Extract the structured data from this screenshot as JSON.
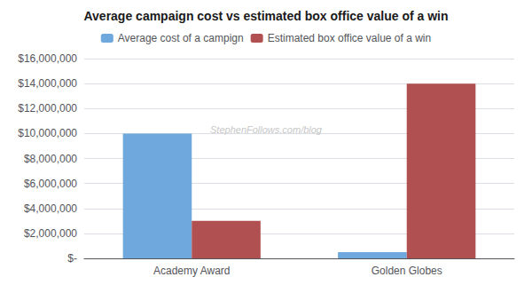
{
  "chart_data": {
    "type": "bar",
    "title": "Average campaign cost vs estimated box office value of a win",
    "categories": [
      "Academy Award",
      "Golden Globes"
    ],
    "series": [
      {
        "name": "Average cost of a campign",
        "color": "#6fa8dc",
        "values": [
          10000000,
          500000
        ]
      },
      {
        "name": "Estimated box office value of a win",
        "color": "#b05050",
        "values": [
          3000000,
          14000000
        ]
      }
    ],
    "ylim": [
      0,
      16000000
    ],
    "yticks": [
      {
        "value": 0,
        "label": "$-"
      },
      {
        "value": 2000000,
        "label": "$2,000,000"
      },
      {
        "value": 4000000,
        "label": "$4,000,000"
      },
      {
        "value": 6000000,
        "label": "$6,000,000"
      },
      {
        "value": 8000000,
        "label": "$8,000,000"
      },
      {
        "value": 10000000,
        "label": "$10,000,000"
      },
      {
        "value": 12000000,
        "label": "$12,000,000"
      },
      {
        "value": 14000000,
        "label": "$14,000,000"
      },
      {
        "value": 16000000,
        "label": "$16,000,000"
      }
    ],
    "grid": true,
    "legend": "top",
    "annotations": [
      "StephenFollows.com/blog"
    ]
  }
}
